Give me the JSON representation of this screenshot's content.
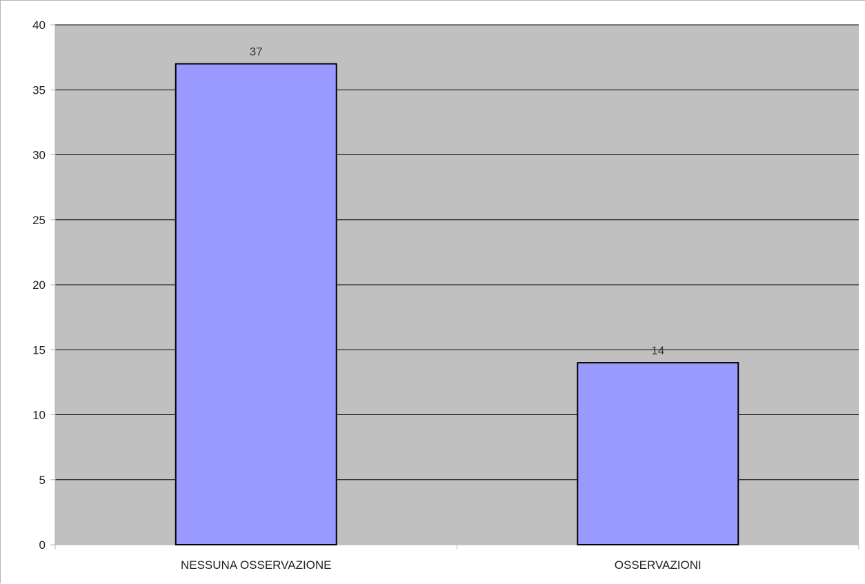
{
  "chart_data": {
    "type": "bar",
    "title": "",
    "xlabel": "",
    "ylabel": "",
    "categories": [
      "NESSUNA OSSERVAZIONE",
      "OSSERVAZIONI"
    ],
    "values": [
      37,
      14
    ],
    "data_labels": [
      "37",
      "14"
    ],
    "ylim": [
      0,
      40
    ],
    "y_ticks": [
      "0",
      "5",
      "10",
      "15",
      "20",
      "25",
      "30",
      "35",
      "40"
    ],
    "grid": true,
    "legend": "none",
    "colors": {
      "plot_background": "#c0c0c0",
      "bar_fill": "#9999ff",
      "bar_stroke": "#000000",
      "gridline": "#000000",
      "axis": "#b3b3b3"
    }
  }
}
